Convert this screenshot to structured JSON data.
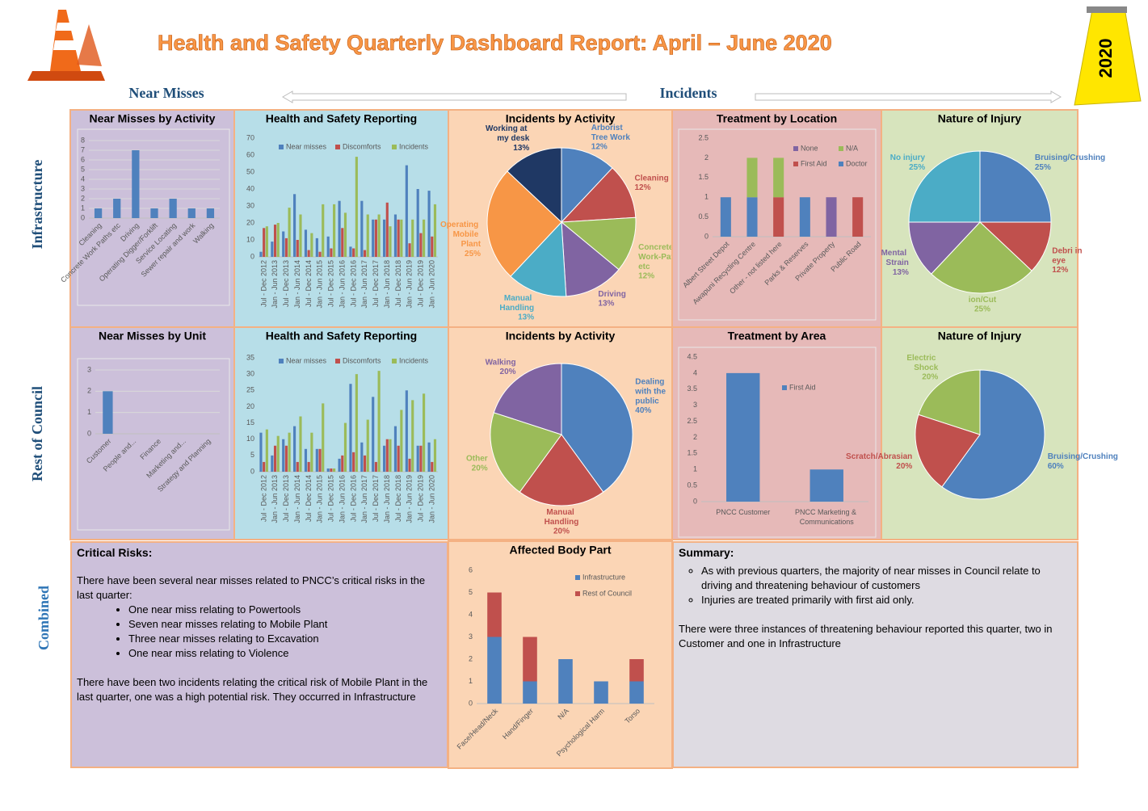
{
  "header": {
    "title": "Health and Safety Quarterly Dashboard Report: April – June 2020",
    "badge": "2020",
    "near_misses": "Near Misses",
    "incidents": "Incidents",
    "rows": [
      "Infrastructure",
      "Rest of Council",
      "Combined"
    ]
  },
  "chart_data": [
    {
      "type": "bar",
      "title": "Near Misses by Activity",
      "categories": [
        "Cleaning",
        "Concrete Work Paths etc",
        "Driving",
        "Operating Digger/Forklift",
        "Service Locating",
        "Sewer repair and work",
        "Walking"
      ],
      "values": [
        1,
        2,
        7,
        1,
        2,
        1,
        1
      ],
      "color": "#4f81bd",
      "ylim": [
        0,
        8
      ],
      "yticks": [
        0,
        1,
        2,
        3,
        4,
        5,
        6,
        7,
        8
      ],
      "grid": true
    },
    {
      "type": "bar",
      "title": "Health and Safety Reporting",
      "categories": [
        "Jul - Dec 2012",
        "Jan - Jun 2013",
        "Jul - Dec 2013",
        "Jan - Jun 2014",
        "Jul - Dec 2014",
        "Jan - Jun 2015",
        "Jul - Dec 2015",
        "Jan - Jun 2016",
        "Jul - Dec 2016",
        "Jan - Jun 2017",
        "Jul - Dec 2017",
        "Jan - Jun 2018",
        "Jul - Dec 2018",
        "Jan - Jun 2019",
        "Jul - Dec 2019",
        "Jan - Jun 2020"
      ],
      "series": [
        {
          "name": "Near misses",
          "color": "#4f81bd",
          "values": [
            3,
            9,
            15,
            37,
            16,
            11,
            12,
            33,
            6,
            33,
            22,
            22,
            25,
            54,
            40,
            39
          ]
        },
        {
          "name": "Discomforts",
          "color": "#c0504d",
          "values": [
            17,
            19,
            11,
            10,
            4,
            3,
            5,
            17,
            5,
            4,
            22,
            32,
            22,
            8,
            14,
            12
          ]
        },
        {
          "name": "Incidents",
          "color": "#9bbb59",
          "values": [
            18,
            20,
            29,
            25,
            14,
            31,
            31,
            26,
            59,
            25,
            25,
            18,
            22,
            22,
            22,
            31
          ]
        }
      ],
      "ylim": [
        0,
        70
      ],
      "yticks": [
        0,
        10,
        20,
        30,
        40,
        50,
        60,
        70
      ],
      "grid": false,
      "legend": "top"
    },
    {
      "type": "pie",
      "title": "Incidents by Activity",
      "categories": [
        "Arborist Tree Work",
        "Cleaning",
        "Concrete Work-Paths etc",
        "Driving",
        "Manual Handling",
        "Operating Mobile Plant",
        "Working at my desk"
      ],
      "values": [
        12,
        12,
        12,
        13,
        13,
        25,
        13
      ],
      "value_labels": [
        "12%",
        "12%",
        "12%",
        "13%",
        "13%",
        "25%",
        "13%"
      ],
      "colors": [
        "#4f81bd",
        "#c0504d",
        "#9bbb59",
        "#8064a2",
        "#4bacc6",
        "#f79646",
        "#1f3864"
      ]
    },
    {
      "type": "bar",
      "title": "Treatment by Location",
      "categories": [
        "Albert Street Depot",
        "Awapuni Recycling Centre",
        "Other - not listed here",
        "Parks & Reserves",
        "Private Property",
        "Public Road"
      ],
      "series": [
        {
          "name": "Doctor",
          "color": "#4f81bd",
          "values": [
            1,
            1,
            0,
            1,
            0,
            0
          ]
        },
        {
          "name": "First Aid",
          "color": "#c0504d",
          "values": [
            0,
            0,
            1,
            0,
            0,
            1
          ]
        },
        {
          "name": "N/A",
          "color": "#9bbb59",
          "values": [
            0,
            1,
            1,
            0,
            0,
            0
          ]
        },
        {
          "name": "None",
          "color": "#8064a2",
          "values": [
            0,
            0,
            0,
            0,
            1,
            0
          ]
        }
      ],
      "stacked": true,
      "ylim": [
        0,
        2.5
      ],
      "yticks": [
        0,
        0.5,
        1,
        1.5,
        2,
        2.5
      ],
      "grid": false,
      "legend": "top-right"
    },
    {
      "type": "pie",
      "title": "Nature of Injury",
      "categories": [
        "Bruising/Crushing",
        "Debri in eye",
        "ion/Cut",
        "Mental Strain",
        "No injury"
      ],
      "values": [
        25,
        12,
        25,
        13,
        25
      ],
      "value_labels": [
        "25%",
        "12%",
        "25%",
        "13%",
        "25%"
      ],
      "colors": [
        "#4f81bd",
        "#c0504d",
        "#9bbb59",
        "#8064a2",
        "#4bacc6"
      ]
    },
    {
      "type": "bar",
      "title": "Near Misses by Unit",
      "categories": [
        "Customer",
        "People and...",
        "Finance",
        "Marketing and...",
        "Strategy and Planning"
      ],
      "values": [
        2,
        0,
        0,
        0,
        0
      ],
      "color": "#4f81bd",
      "ylim": [
        0,
        3
      ],
      "yticks": [
        0,
        1,
        2,
        3
      ],
      "grid": true
    },
    {
      "type": "bar",
      "title": "Health and Safety Reporting",
      "categories": [
        "Jul - Dec 2012",
        "Jan - Jun 2013",
        "Jul - Dec 2013",
        "Jan - Jun 2014",
        "Jul - Dec 2014",
        "Jan - Jun 2015",
        "Jul - Dec 2015",
        "Jan - Jun 2016",
        "Jul - Dec 2016",
        "Jan - Jun 2017",
        "Jul - Dec 2017",
        "Jan - Jun 2018",
        "Jul - Dec 2018",
        "Jan - Jun 2019",
        "Jul - Dec 2019",
        "Jan - Jun 2020"
      ],
      "series": [
        {
          "name": "Near misses",
          "color": "#4f81bd",
          "values": [
            12,
            5,
            10,
            14,
            7,
            7,
            1,
            4,
            27,
            9,
            23,
            8,
            14,
            25,
            8,
            9
          ]
        },
        {
          "name": "Discomforts",
          "color": "#c0504d",
          "values": [
            3,
            8,
            8,
            3,
            3,
            7,
            1,
            5,
            6,
            5,
            3,
            10,
            8,
            4,
            8,
            3
          ]
        },
        {
          "name": "Incidents",
          "color": "#9bbb59",
          "values": [
            13,
            11,
            12,
            17,
            12,
            21,
            1,
            15,
            30,
            16,
            31,
            10,
            19,
            22,
            24,
            10
          ]
        }
      ],
      "ylim": [
        0,
        35
      ],
      "yticks": [
        0,
        5,
        10,
        15,
        20,
        25,
        30,
        35
      ],
      "grid": false,
      "legend": "top"
    },
    {
      "type": "pie",
      "title": "Incidents by Activity",
      "categories": [
        "Dealing with the public",
        "Manual Handling",
        "Other",
        "Walking"
      ],
      "values": [
        40,
        20,
        20,
        20
      ],
      "value_labels": [
        "40%",
        "20%",
        "20%",
        "20%"
      ],
      "colors": [
        "#4f81bd",
        "#c0504d",
        "#9bbb59",
        "#8064a2"
      ]
    },
    {
      "type": "bar",
      "title": "Treatment by Area",
      "categories": [
        "PNCC Customer",
        "PNCC Marketing & Communications"
      ],
      "series": [
        {
          "name": "First Aid",
          "color": "#4f81bd",
          "values": [
            4,
            1
          ]
        }
      ],
      "ylim": [
        0,
        4.5
      ],
      "yticks": [
        0,
        0.5,
        1,
        1.5,
        2,
        2.5,
        3,
        3.5,
        4,
        4.5
      ],
      "grid": false,
      "legend": "top-right"
    },
    {
      "type": "pie",
      "title": "Nature of Injury",
      "categories": [
        "Bruising/Crushing",
        "Scratch/Abrasian",
        "Electric Shock"
      ],
      "values": [
        60,
        20,
        20
      ],
      "value_labels": [
        "60%",
        "20%",
        "20%"
      ],
      "colors": [
        "#4f81bd",
        "#c0504d",
        "#9bbb59"
      ]
    },
    {
      "type": "bar",
      "title": "Affected Body Part",
      "categories": [
        "Face/Head/Neck",
        "Hand/Finger",
        "N/A",
        "Psychological Harm",
        "Torso"
      ],
      "series": [
        {
          "name": "Infrastructure",
          "color": "#4f81bd",
          "values": [
            3,
            1,
            2,
            1,
            1
          ]
        },
        {
          "name": "Rest of Council",
          "color": "#c0504d",
          "values": [
            2,
            2,
            0,
            0,
            1
          ]
        }
      ],
      "stacked": true,
      "ylim": [
        0,
        6
      ],
      "yticks": [
        0,
        1,
        2,
        3,
        4,
        5,
        6
      ],
      "grid": false,
      "legend": "top-right"
    }
  ],
  "critical_risks": {
    "heading": "Critical Risks:",
    "intro": "There have been several near misses related to PNCC’s critical risks in the last quarter:",
    "items": [
      "One near miss relating to Powertools",
      "Seven near misses relating to Mobile Plant",
      "Three near misses relating to Excavation",
      "One near miss relating to Violence"
    ],
    "outro": "There have been two incidents relating the critical risk of Mobile Plant in the last quarter, one was a high potential risk. They occurred in Infrastructure"
  },
  "summary": {
    "heading": "Summary:",
    "items": [
      "As with previous quarters, the majority of near misses in Council relate to driving and threatening behaviour of customers",
      "Injuries are treated primarily with first aid only."
    ],
    "text": "There were three instances of threatening behaviour reported this quarter, two in Customer and one in Infrastructure"
  }
}
